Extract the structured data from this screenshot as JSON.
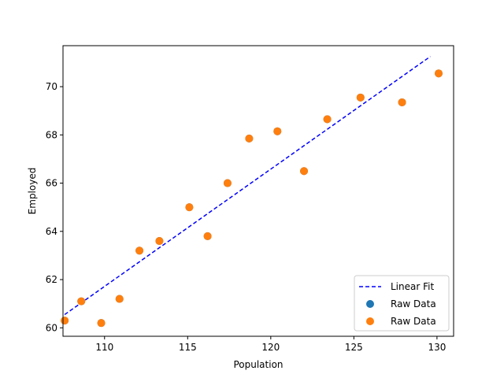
{
  "chart_data": {
    "type": "scatter",
    "title": "",
    "xlabel": "Population",
    "ylabel": "Employed",
    "xlim": [
      107.5,
      131.0
    ],
    "ylim": [
      59.65,
      71.7
    ],
    "xticks": [
      110,
      115,
      120,
      125,
      130
    ],
    "yticks": [
      60,
      62,
      64,
      66,
      68,
      70
    ],
    "grid": false,
    "legend_position": "lower-right",
    "series": [
      {
        "name": "Linear Fit",
        "kind": "line",
        "style": "dashed",
        "color": "#0000ff",
        "x": [
          107.6,
          129.6
        ],
        "y": [
          60.55,
          71.25
        ]
      },
      {
        "name": "Raw Data",
        "kind": "scatter",
        "color": "#1f77b4",
        "x": [
          107.6,
          108.6,
          109.8,
          110.9,
          112.1,
          113.3,
          115.1,
          116.2,
          117.4,
          118.7,
          120.4,
          122.0,
          123.4,
          125.4,
          127.9,
          130.1
        ],
        "y": [
          60.3,
          61.1,
          60.2,
          61.2,
          63.2,
          63.6,
          65.0,
          63.8,
          66.0,
          67.85,
          68.15,
          66.5,
          68.65,
          69.55,
          69.35,
          70.55
        ]
      },
      {
        "name": "Raw Data",
        "kind": "scatter",
        "color": "#ff7f0e",
        "x": [
          107.6,
          108.6,
          109.8,
          110.9,
          112.1,
          113.3,
          115.1,
          116.2,
          117.4,
          118.7,
          120.4,
          122.0,
          123.4,
          125.4,
          127.9,
          130.1
        ],
        "y": [
          60.3,
          61.1,
          60.2,
          61.2,
          63.2,
          63.6,
          65.0,
          63.8,
          66.0,
          67.85,
          68.15,
          66.5,
          68.65,
          69.55,
          69.35,
          70.55
        ]
      }
    ]
  }
}
